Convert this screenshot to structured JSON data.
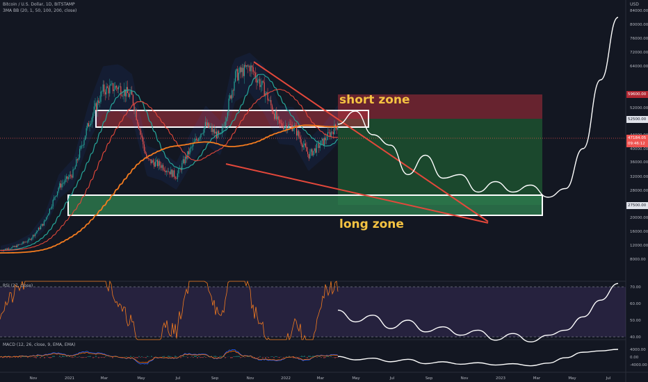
{
  "header": {
    "symbol_line": "Bitcoin / U.S. Dollar, 1D, BITSTAMP",
    "indicator_line": "3MA BB (20, 1, 50, 100, 200, close)",
    "currency": "USD"
  },
  "annotations": {
    "short_zone": "short zone",
    "long_zone": "long zone"
  },
  "price_tags": {
    "tag_59600": "59600.00",
    "tag_52500": "52500.00",
    "tag_current": "47184.05",
    "tag_countdown": "09:46:12",
    "tag_27500": "27500.00"
  },
  "panes": {
    "rsi_title": "RSI (27, close)",
    "macd_title": "MACD (12, 26, close, 9, EMA, EMA)"
  },
  "colors": {
    "background": "#131722",
    "candle_up": "#26a69a",
    "candle_down": "#ef5350",
    "zone_short": "#8b2a35",
    "zone_long": "#2e7d4f",
    "trendline": "#e5483b",
    "ma_orange": "#f57c1f",
    "projection": "#ffffff",
    "label_yellow": "#f5c342"
  },
  "chart_data": [
    {
      "type": "line",
      "title": "Bitcoin / U.S. Dollar, 1D, BITSTAMP",
      "ylabel": "USD",
      "x_ticks": [
        "Nov",
        "2021",
        "Mar",
        "May",
        "Jul",
        "Sep",
        "Nov",
        "2022",
        "Mar",
        "May",
        "Jul",
        "Sep",
        "Nov",
        "2023",
        "Mar",
        "May",
        "Jul"
      ],
      "y_ticks": [
        8000,
        12000,
        16000,
        20000,
        24000,
        28000,
        32000,
        36000,
        40000,
        44000,
        48000,
        52000,
        56000,
        64000,
        72000,
        76000,
        80000,
        84000
      ],
      "ylim": [
        6000,
        86000
      ],
      "grid": false,
      "series": [
        {
          "name": "price",
          "values": [
            10500,
            11500,
            13500,
            18500,
            29000,
            33000,
            47000,
            57000,
            58000,
            55000,
            36500,
            35000,
            32000,
            40000,
            47000,
            43000,
            61000,
            64000,
            57000,
            47000,
            46500,
            38000,
            42000,
            47184
          ]
        },
        {
          "name": "projection",
          "values": [
            47184,
            51000,
            44000,
            41000,
            32500,
            38000,
            31500,
            32500,
            27500,
            30500,
            27500,
            29500,
            26000,
            28500,
            40000,
            60000,
            82000
          ]
        }
      ],
      "zones": [
        {
          "name": "short zone",
          "from": 52500,
          "to": 59600
        },
        {
          "name": "long zone",
          "from": 27500,
          "to": 52500
        }
      ],
      "levels": [
        52500,
        27500
      ]
    },
    {
      "type": "line",
      "title": "RSI (27, close)",
      "y_ticks": [
        40,
        50,
        60,
        70
      ],
      "ylim": [
        32,
        74
      ],
      "grid": false
    },
    {
      "type": "line",
      "title": "MACD (12, 26, close, 9, EMA, EMA)",
      "y_ticks": [
        4000,
        0,
        -4000
      ],
      "ylim": [
        -6000,
        6000
      ],
      "grid": false
    }
  ]
}
